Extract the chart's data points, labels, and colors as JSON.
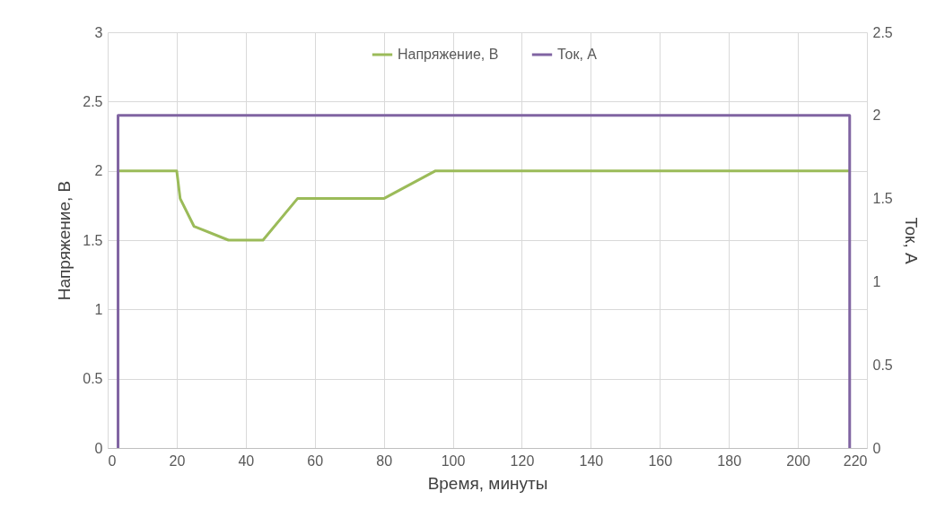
{
  "chart_data": {
    "type": "line",
    "xlabel": "Время, минуты",
    "ylabel": "Напряжение, В",
    "y2label": "Ток, А",
    "series": [
      {
        "name": "Напряжение, В",
        "color": "#9bbb59",
        "x": [
          3,
          20,
          21,
          25,
          35,
          45,
          55,
          80,
          95,
          215
        ],
        "values": [
          2,
          2,
          1.8,
          1.6,
          1.5,
          1.5,
          1.8,
          1.8,
          2,
          2
        ]
      },
      {
        "name": "Ток, А",
        "color": "#8064a2",
        "axis": "y2",
        "x": [
          3,
          3,
          215,
          215
        ],
        "values": [
          0,
          2,
          2,
          0
        ]
      }
    ],
    "xlim": [
      0,
      220
    ],
    "xticks": [
      0,
      20,
      40,
      60,
      80,
      100,
      120,
      140,
      160,
      180,
      200,
      220
    ],
    "ylim": [
      0,
      3
    ],
    "yticks": [
      0,
      0.5,
      1,
      1.5,
      2,
      2.5,
      3
    ],
    "y2lim": [
      0,
      2.5
    ],
    "y2ticks": [
      0,
      0.5,
      1,
      1.5,
      2,
      2.5
    ],
    "grid": true,
    "legend": "top"
  }
}
